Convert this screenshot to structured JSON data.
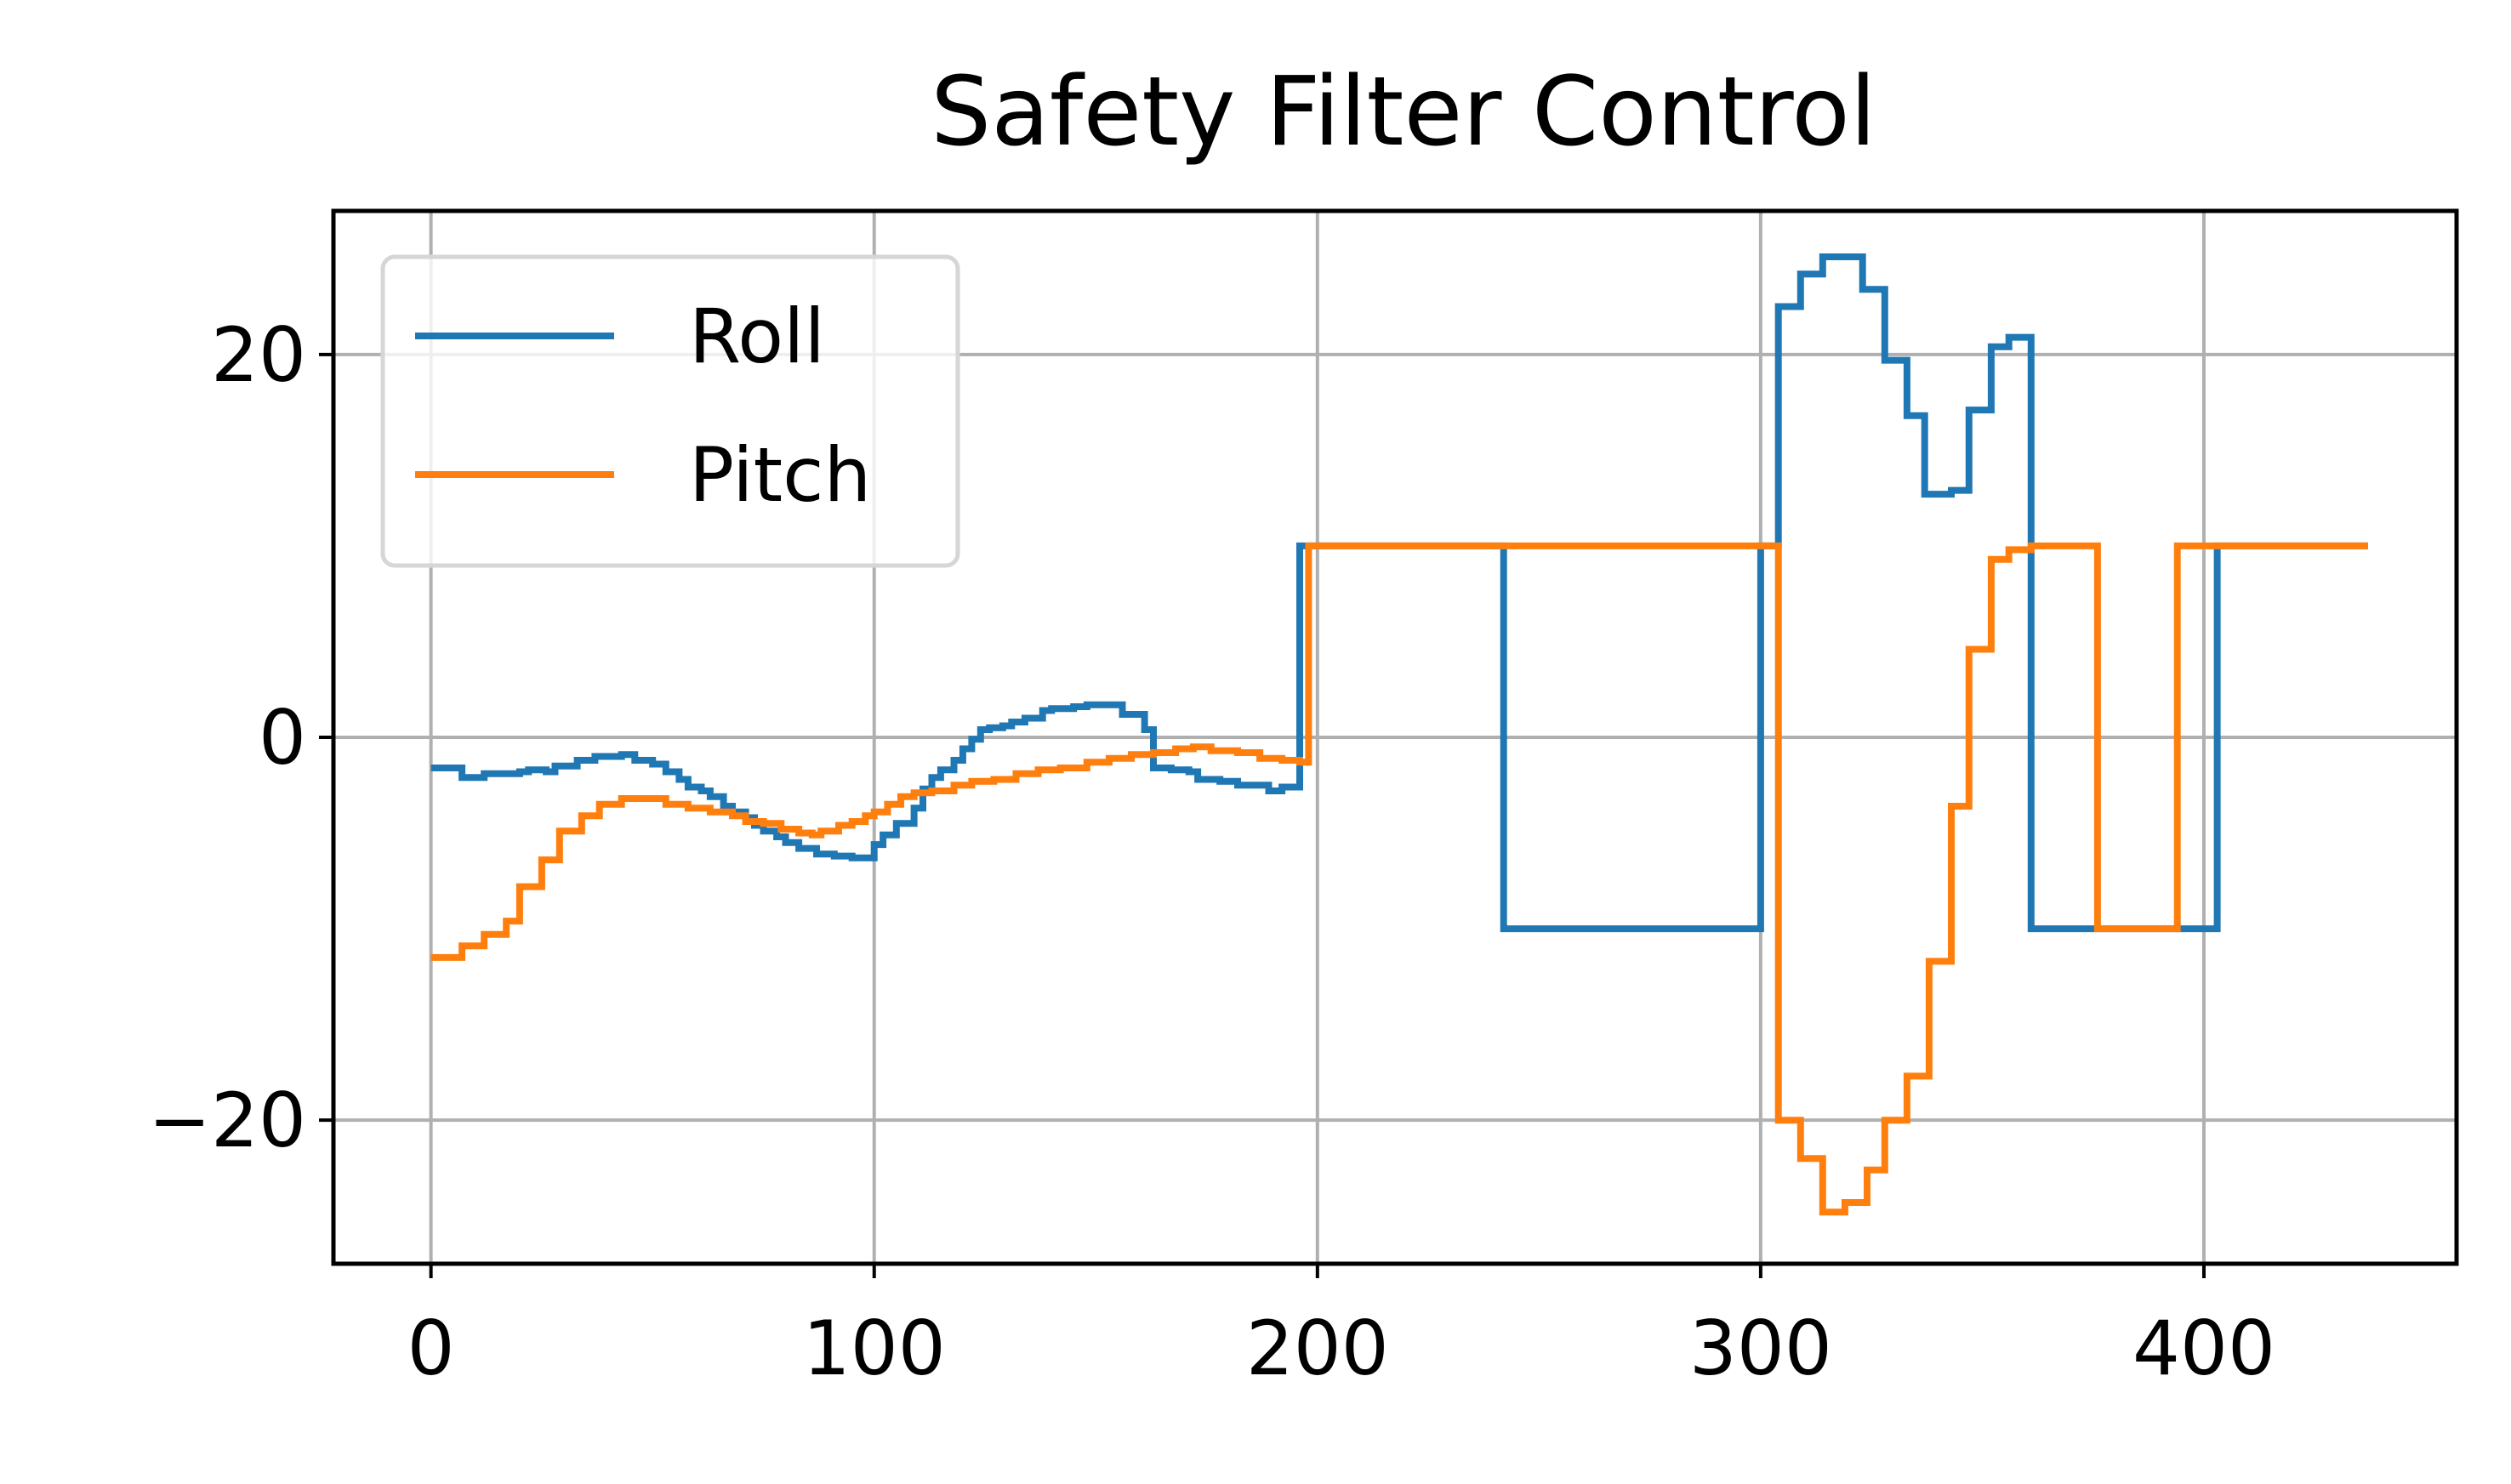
{
  "chart_data": {
    "type": "line",
    "title": "Safety Filter Control",
    "xlabel": "",
    "ylabel": "",
    "xlim": [
      -22,
      457
    ],
    "ylim": [
      -27.5,
      27.5
    ],
    "xticks": [
      0,
      100,
      200,
      300,
      400
    ],
    "yticks": [
      -20,
      0,
      20
    ],
    "xtick_labels": [
      "0",
      "100",
      "200",
      "300",
      "400"
    ],
    "ytick_labels": [
      "−20",
      "0",
      "20"
    ],
    "grid": true,
    "legend_position": "top-left",
    "series": [
      {
        "name": "Roll",
        "color": "#1f77b4",
        "step": true,
        "points": [
          [
            0,
            -1.6
          ],
          [
            5,
            -1.6
          ],
          [
            7,
            -2.1
          ],
          [
            10,
            -2.1
          ],
          [
            12,
            -1.9
          ],
          [
            20,
            -1.8
          ],
          [
            22,
            -1.7
          ],
          [
            26,
            -1.8
          ],
          [
            28,
            -1.5
          ],
          [
            33,
            -1.2
          ],
          [
            37,
            -1.0
          ],
          [
            43,
            -0.9
          ],
          [
            46,
            -1.2
          ],
          [
            50,
            -1.4
          ],
          [
            53,
            -1.8
          ],
          [
            56,
            -2.2
          ],
          [
            58,
            -2.6
          ],
          [
            61,
            -2.8
          ],
          [
            63,
            -3.1
          ],
          [
            66,
            -3.6
          ],
          [
            68,
            -3.9
          ],
          [
            71,
            -4.2
          ],
          [
            73,
            -4.6
          ],
          [
            75,
            -4.9
          ],
          [
            78,
            -5.2
          ],
          [
            80,
            -5.5
          ],
          [
            83,
            -5.8
          ],
          [
            87,
            -6.1
          ],
          [
            91,
            -6.2
          ],
          [
            95,
            -6.3
          ],
          [
            98,
            -6.3
          ],
          [
            100,
            -5.6
          ],
          [
            102,
            -5.1
          ],
          [
            105,
            -4.5
          ],
          [
            109,
            -3.7
          ],
          [
            111,
            -2.7
          ],
          [
            113,
            -2.1
          ],
          [
            115,
            -1.7
          ],
          [
            118,
            -1.2
          ],
          [
            120,
            -0.6
          ],
          [
            122,
            -0.1
          ],
          [
            124,
            0.4
          ],
          [
            126,
            0.5
          ],
          [
            129,
            0.6
          ],
          [
            131,
            0.8
          ],
          [
            134,
            1.0
          ],
          [
            138,
            1.4
          ],
          [
            140,
            1.5
          ],
          [
            145,
            1.6
          ],
          [
            148,
            1.7
          ],
          [
            156,
            1.2
          ],
          [
            159,
            1.2
          ],
          [
            161,
            0.4
          ],
          [
            163,
            -1.6
          ],
          [
            167,
            -1.7
          ],
          [
            171,
            -1.8
          ],
          [
            173,
            -2.2
          ],
          [
            178,
            -2.3
          ],
          [
            182,
            -2.5
          ],
          [
            187,
            -2.5
          ],
          [
            189,
            -2.8
          ],
          [
            192,
            -2.6
          ],
          [
            196,
            -2.4
          ],
          [
            196,
            10
          ],
          [
            240,
            10
          ],
          [
            242,
            -10
          ],
          [
            298,
            -10
          ],
          [
            300,
            10
          ],
          [
            302,
            10
          ],
          [
            304,
            22.5
          ],
          [
            307,
            22.5
          ],
          [
            309,
            24.2
          ],
          [
            312,
            24.2
          ],
          [
            314,
            25.1
          ],
          [
            321,
            25.1
          ],
          [
            323,
            23.4
          ],
          [
            326,
            23.4
          ],
          [
            328,
            19.7
          ],
          [
            331,
            19.7
          ],
          [
            333,
            16.8
          ],
          [
            335,
            16.8
          ],
          [
            337,
            12.7
          ],
          [
            341,
            12.7
          ],
          [
            343,
            12.9
          ],
          [
            345,
            12.9
          ],
          [
            347,
            17.1
          ],
          [
            350,
            17.1
          ],
          [
            352,
            20.4
          ],
          [
            354,
            20.4
          ],
          [
            356,
            20.9
          ],
          [
            359,
            20.9
          ],
          [
            361,
            -10
          ],
          [
            372,
            -10
          ],
          [
            401,
            -10
          ],
          [
            403,
            10
          ],
          [
            437,
            10
          ]
        ]
      },
      {
        "name": "Pitch",
        "color": "#ff7f0e",
        "step": true,
        "points": [
          [
            0,
            -11.5
          ],
          [
            5,
            -11.5
          ],
          [
            7,
            -10.9
          ],
          [
            10,
            -10.9
          ],
          [
            12,
            -10.3
          ],
          [
            15,
            -10.3
          ],
          [
            17,
            -9.6
          ],
          [
            18,
            -9.6
          ],
          [
            20,
            -7.8
          ],
          [
            23,
            -7.8
          ],
          [
            25,
            -6.4
          ],
          [
            27,
            -6.4
          ],
          [
            29,
            -4.9
          ],
          [
            32,
            -4.9
          ],
          [
            34,
            -4.1
          ],
          [
            36,
            -4.1
          ],
          [
            38,
            -3.5
          ],
          [
            41,
            -3.5
          ],
          [
            43,
            -3.2
          ],
          [
            50,
            -3.2
          ],
          [
            53,
            -3.5
          ],
          [
            58,
            -3.7
          ],
          [
            63,
            -3.9
          ],
          [
            68,
            -4.1
          ],
          [
            71,
            -4.4
          ],
          [
            75,
            -4.5
          ],
          [
            79,
            -4.8
          ],
          [
            83,
            -5.0
          ],
          [
            86,
            -5.1
          ],
          [
            88,
            -4.9
          ],
          [
            92,
            -4.6
          ],
          [
            95,
            -4.4
          ],
          [
            98,
            -4.1
          ],
          [
            100,
            -3.9
          ],
          [
            103,
            -3.5
          ],
          [
            106,
            -3.1
          ],
          [
            109,
            -2.9
          ],
          [
            113,
            -2.8
          ],
          [
            118,
            -2.5
          ],
          [
            122,
            -2.3
          ],
          [
            127,
            -2.2
          ],
          [
            132,
            -1.9
          ],
          [
            137,
            -1.7
          ],
          [
            142,
            -1.6
          ],
          [
            148,
            -1.3
          ],
          [
            153,
            -1.1
          ],
          [
            158,
            -0.9
          ],
          [
            163,
            -0.8
          ],
          [
            168,
            -0.6
          ],
          [
            172,
            -0.5
          ],
          [
            176,
            -0.7
          ],
          [
            182,
            -0.8
          ],
          [
            187,
            -1.1
          ],
          [
            192,
            -1.2
          ],
          [
            196,
            -1.3
          ],
          [
            198,
            10
          ],
          [
            300,
            10
          ],
          [
            302,
            10
          ],
          [
            304,
            -20
          ],
          [
            307,
            -20
          ],
          [
            309,
            -22
          ],
          [
            312,
            -22
          ],
          [
            314,
            -24.8
          ],
          [
            317,
            -24.8
          ],
          [
            319,
            -24.3
          ],
          [
            322,
            -24.3
          ],
          [
            324,
            -22.6
          ],
          [
            326,
            -22.6
          ],
          [
            328,
            -20.0
          ],
          [
            331,
            -20.0
          ],
          [
            333,
            -17.7
          ],
          [
            336,
            -17.7
          ],
          [
            338,
            -11.7
          ],
          [
            341,
            -11.7
          ],
          [
            343,
            -3.6
          ],
          [
            345,
            -3.6
          ],
          [
            347,
            4.6
          ],
          [
            350,
            4.6
          ],
          [
            352,
            9.3
          ],
          [
            354,
            9.3
          ],
          [
            356,
            9.8
          ],
          [
            359,
            9.8
          ],
          [
            361,
            10
          ],
          [
            374,
            10
          ],
          [
            376,
            -10
          ],
          [
            392,
            -10
          ],
          [
            394,
            10
          ],
          [
            437,
            10
          ]
        ]
      }
    ]
  }
}
